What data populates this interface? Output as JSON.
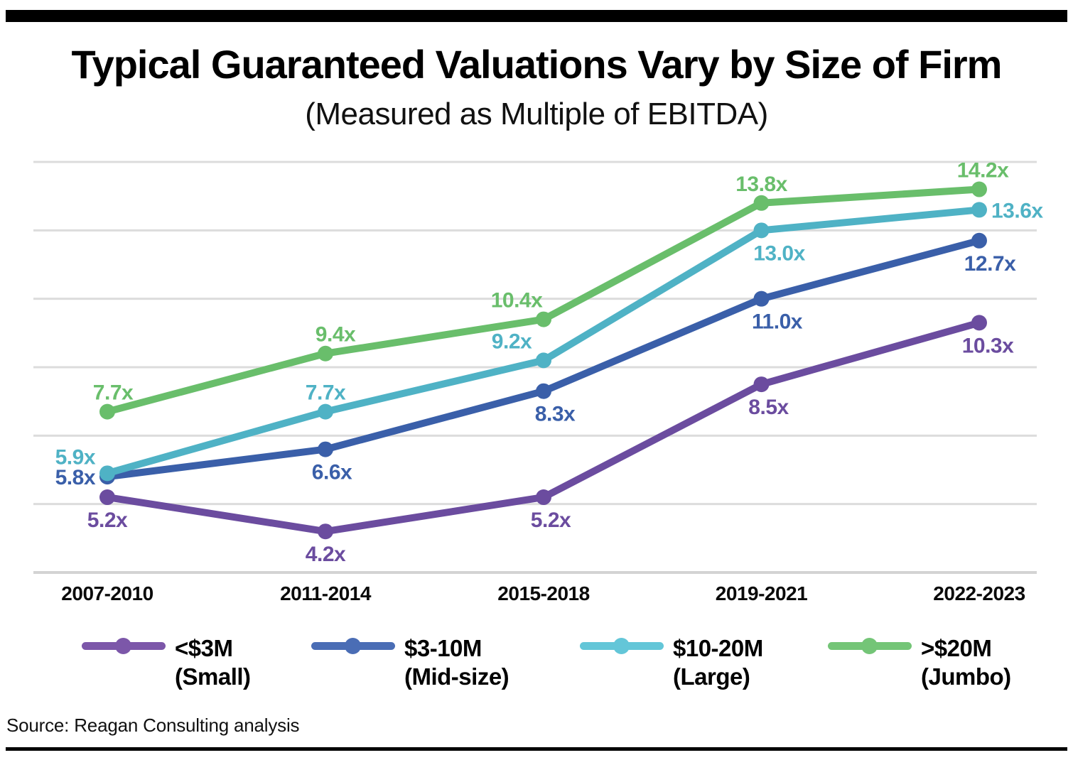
{
  "chart_data": {
    "type": "line",
    "title": "Typical Guaranteed Valuations Vary by Size of Firm",
    "subtitle": "(Measured as Multiple of EBITDA)",
    "categories": [
      "2007-2010",
      "2011-2014",
      "2015-2018",
      "2019-2021",
      "2022-2023"
    ],
    "unit_suffix": "x",
    "ylim": [
      3,
      15
    ],
    "gridlines": [
      3,
      5,
      7,
      9,
      11,
      13,
      15
    ],
    "grid": "horizontal",
    "legend_position": "bottom",
    "series": [
      {
        "name": "<$3M",
        "sublabel": "(Small)",
        "color": "#6B4C9F",
        "legend_color": "#7C57A9",
        "values": [
          5.2,
          4.2,
          5.2,
          8.5,
          10.3
        ],
        "labels": [
          "5.2x",
          "4.2x",
          "5.2x",
          "8.5x",
          "10.3x"
        ]
      },
      {
        "name": "$3-10M",
        "sublabel": "(Mid-size)",
        "color": "#3A5FA9",
        "legend_color": "#4A6DB5",
        "values": [
          5.8,
          6.6,
          8.3,
          11.0,
          12.7
        ],
        "labels": [
          "5.8x",
          "6.6x",
          "8.3x",
          "11.0x",
          "12.7x"
        ]
      },
      {
        "name": "$10-20M",
        "sublabel": "(Large)",
        "color": "#4FB2C5",
        "legend_color": "#63C6D8",
        "values": [
          5.9,
          7.7,
          9.2,
          13.0,
          13.6
        ],
        "labels": [
          "5.9x",
          "7.7x",
          "9.2x",
          "13.0x",
          "13.6x"
        ]
      },
      {
        "name": ">$20M",
        "sublabel": "(Jumbo)",
        "color": "#69BE6B",
        "legend_color": "#74C577",
        "values": [
          7.7,
          9.4,
          10.4,
          13.8,
          14.2
        ],
        "labels": [
          "7.7x",
          "9.4x",
          "10.4x",
          "13.8x",
          "14.2x"
        ]
      }
    ],
    "source": "Source: Reagan Consulting analysis"
  },
  "style": {
    "gridline_color": "#DCDCDC",
    "axis_color": "#D3D3D3",
    "axis_label_color": "#0A0A0A"
  }
}
